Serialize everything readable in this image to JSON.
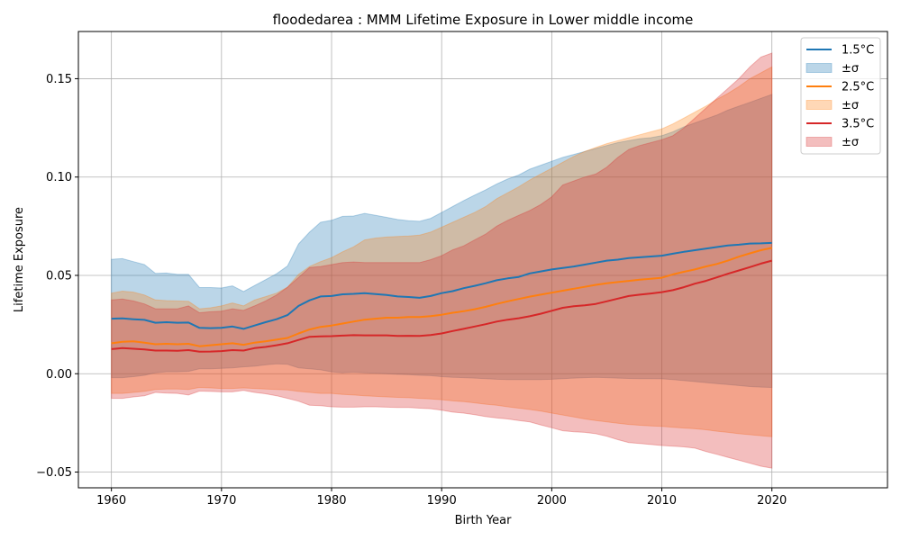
{
  "chart_data": {
    "type": "area",
    "title": "floodedarea : MMM Lifetime Exposure in Lower middle income",
    "xlabel": "Birth Year",
    "ylabel": "Lifetime Exposure",
    "xlim": [
      1957,
      2030.5
    ],
    "ylim": [
      -0.058,
      0.174
    ],
    "xticks": [
      1960,
      1970,
      1980,
      1990,
      2000,
      2010,
      2020
    ],
    "xtick_labels": [
      "1960",
      "1970",
      "1980",
      "1990",
      "2000",
      "2010",
      "2020"
    ],
    "yticks": [
      -0.05,
      0.0,
      0.05,
      0.1,
      0.15
    ],
    "ytick_labels": [
      "−0.05",
      "0.00",
      "0.05",
      "0.10",
      "0.15"
    ],
    "grid": true,
    "legend_position": "top-right",
    "legend": [
      {
        "label": "1.5°C",
        "kind": "line",
        "color": "#1f77b4"
      },
      {
        "label": "±σ",
        "kind": "patch",
        "color": "#1f77b4"
      },
      {
        "label": "2.5°C",
        "kind": "line",
        "color": "#ff7f0e"
      },
      {
        "label": "±σ",
        "kind": "patch",
        "color": "#ff7f0e"
      },
      {
        "label": "3.5°C",
        "kind": "line",
        "color": "#d62728"
      },
      {
        "label": "±σ",
        "kind": "patch",
        "color": "#d62728"
      }
    ],
    "x": [
      1960,
      1961,
      1962,
      1963,
      1964,
      1965,
      1966,
      1967,
      1968,
      1969,
      1970,
      1971,
      1972,
      1973,
      1974,
      1975,
      1976,
      1977,
      1978,
      1979,
      1980,
      1981,
      1982,
      1983,
      1984,
      1985,
      1986,
      1987,
      1988,
      1989,
      1990,
      1991,
      1992,
      1993,
      1994,
      1995,
      1996,
      1997,
      1998,
      1999,
      2000,
      2001,
      2002,
      2003,
      2004,
      2005,
      2006,
      2007,
      2008,
      2009,
      2010,
      2011,
      2012,
      2013,
      2014,
      2015,
      2016,
      2017,
      2018,
      2019,
      2020
    ],
    "series": [
      {
        "name": "1.5°C",
        "color": "#1f77b4",
        "mean": [
          0.028,
          0.0281,
          0.0277,
          0.0274,
          0.0259,
          0.0262,
          0.0259,
          0.026,
          0.0233,
          0.0232,
          0.0233,
          0.024,
          0.0228,
          0.0245,
          0.0262,
          0.0277,
          0.0298,
          0.0345,
          0.0373,
          0.0393,
          0.0395,
          0.0404,
          0.0406,
          0.041,
          0.0405,
          0.04,
          0.0393,
          0.039,
          0.0386,
          0.0395,
          0.041,
          0.042,
          0.0435,
          0.0447,
          0.046,
          0.0475,
          0.0485,
          0.0492,
          0.051,
          0.052,
          0.053,
          0.0538,
          0.0545,
          0.0555,
          0.0565,
          0.0575,
          0.058,
          0.0588,
          0.0592,
          0.0596,
          0.06,
          0.061,
          0.062,
          0.0628,
          0.0636,
          0.0644,
          0.0652,
          0.0656,
          0.0662,
          0.0663,
          0.0665
        ],
        "upper": [
          0.0582,
          0.0585,
          0.057,
          0.0555,
          0.051,
          0.0512,
          0.0505,
          0.0505,
          0.0438,
          0.0438,
          0.0436,
          0.0447,
          0.0418,
          0.0448,
          0.0478,
          0.0508,
          0.0548,
          0.066,
          0.072,
          0.077,
          0.078,
          0.08,
          0.0802,
          0.0815,
          0.0805,
          0.0795,
          0.0784,
          0.0778,
          0.0775,
          0.079,
          0.082,
          0.085,
          0.088,
          0.0908,
          0.0935,
          0.0965,
          0.099,
          0.101,
          0.104,
          0.106,
          0.108,
          0.11,
          0.1115,
          0.113,
          0.1145,
          0.116,
          0.1175,
          0.1185,
          0.1195,
          0.12,
          0.121,
          0.123,
          0.1255,
          0.1275,
          0.1295,
          0.1315,
          0.134,
          0.136,
          0.138,
          0.14,
          0.142
        ],
        "lower": [
          -0.002,
          -0.002,
          -0.0015,
          -0.0008,
          0.0005,
          0.001,
          0.001,
          0.0012,
          0.0025,
          0.0025,
          0.0027,
          0.003,
          0.0035,
          0.0038,
          0.0045,
          0.005,
          0.0048,
          0.003,
          0.0025,
          0.002,
          0.001,
          0.0005,
          0.0008,
          0.0005,
          0.0002,
          0.0,
          -0.0003,
          -0.0005,
          -0.0008,
          -0.001,
          -0.0015,
          -0.0018,
          -0.002,
          -0.0022,
          -0.0025,
          -0.0028,
          -0.003,
          -0.003,
          -0.003,
          -0.003,
          -0.0028,
          -0.0025,
          -0.0022,
          -0.002,
          -0.0018,
          -0.002,
          -0.0022,
          -0.0024,
          -0.0025,
          -0.0025,
          -0.0026,
          -0.003,
          -0.0035,
          -0.004,
          -0.0045,
          -0.005,
          -0.0055,
          -0.006,
          -0.0065,
          -0.0068,
          -0.007
        ]
      },
      {
        "name": "2.5°C",
        "color": "#ff7f0e",
        "mean": [
          0.0155,
          0.0162,
          0.0165,
          0.0158,
          0.015,
          0.0152,
          0.015,
          0.0152,
          0.014,
          0.0145,
          0.015,
          0.0155,
          0.0147,
          0.0158,
          0.0165,
          0.0173,
          0.0182,
          0.0205,
          0.0225,
          0.0238,
          0.0245,
          0.0255,
          0.0265,
          0.0275,
          0.028,
          0.0285,
          0.0285,
          0.0288,
          0.0288,
          0.0293,
          0.03,
          0.031,
          0.0318,
          0.0328,
          0.034,
          0.0355,
          0.0368,
          0.038,
          0.0392,
          0.0402,
          0.0412,
          0.0422,
          0.0432,
          0.0442,
          0.0452,
          0.046,
          0.0466,
          0.0472,
          0.0478,
          0.0483,
          0.0488,
          0.0505,
          0.0518,
          0.053,
          0.0545,
          0.0558,
          0.0575,
          0.0595,
          0.0612,
          0.0628,
          0.064
        ],
        "upper": [
          0.041,
          0.042,
          0.0415,
          0.04,
          0.0375,
          0.0372,
          0.037,
          0.0368,
          0.033,
          0.0335,
          0.0345,
          0.036,
          0.0345,
          0.0375,
          0.0392,
          0.041,
          0.044,
          0.0505,
          0.0545,
          0.057,
          0.059,
          0.062,
          0.0645,
          0.068,
          0.069,
          0.0695,
          0.0698,
          0.07,
          0.0705,
          0.072,
          0.0745,
          0.077,
          0.0795,
          0.082,
          0.085,
          0.089,
          0.092,
          0.095,
          0.0985,
          0.1015,
          0.1045,
          0.1075,
          0.1105,
          0.113,
          0.115,
          0.117,
          0.1185,
          0.12,
          0.1215,
          0.123,
          0.1245,
          0.127,
          0.13,
          0.133,
          0.136,
          0.1395,
          0.1425,
          0.146,
          0.15,
          0.153,
          0.156
        ],
        "lower": [
          -0.01,
          -0.01,
          -0.0095,
          -0.009,
          -0.008,
          -0.0078,
          -0.0078,
          -0.008,
          -0.007,
          -0.0072,
          -0.0075,
          -0.0075,
          -0.0072,
          -0.0075,
          -0.0078,
          -0.008,
          -0.0082,
          -0.009,
          -0.0095,
          -0.01,
          -0.01,
          -0.0105,
          -0.0108,
          -0.0112,
          -0.0115,
          -0.0118,
          -0.012,
          -0.0122,
          -0.0125,
          -0.0128,
          -0.0132,
          -0.0138,
          -0.0142,
          -0.0148,
          -0.0155,
          -0.016,
          -0.0168,
          -0.0175,
          -0.0182,
          -0.019,
          -0.02,
          -0.021,
          -0.022,
          -0.023,
          -0.0238,
          -0.0245,
          -0.0252,
          -0.0258,
          -0.0262,
          -0.0265,
          -0.0268,
          -0.0272,
          -0.0276,
          -0.028,
          -0.0285,
          -0.0292,
          -0.0298,
          -0.0305,
          -0.031,
          -0.0315,
          -0.032
        ]
      },
      {
        "name": "3.5°C",
        "color": "#d62728",
        "mean": [
          0.0125,
          0.013,
          0.0127,
          0.0124,
          0.0118,
          0.0118,
          0.0117,
          0.012,
          0.0112,
          0.0113,
          0.0115,
          0.012,
          0.0118,
          0.013,
          0.0136,
          0.0145,
          0.0155,
          0.0172,
          0.0188,
          0.019,
          0.0191,
          0.0194,
          0.0196,
          0.0195,
          0.0195,
          0.0195,
          0.0192,
          0.0193,
          0.0192,
          0.0197,
          0.0205,
          0.0217,
          0.0228,
          0.024,
          0.0252,
          0.0265,
          0.0275,
          0.0282,
          0.0292,
          0.0305,
          0.032,
          0.0335,
          0.0343,
          0.0348,
          0.0355,
          0.0368,
          0.0382,
          0.0395,
          0.0402,
          0.0408,
          0.0415,
          0.0425,
          0.044,
          0.0458,
          0.0472,
          0.049,
          0.0508,
          0.0525,
          0.0542,
          0.056,
          0.0575
        ],
        "upper": [
          0.0375,
          0.038,
          0.037,
          0.0355,
          0.033,
          0.033,
          0.033,
          0.0345,
          0.031,
          0.0315,
          0.0318,
          0.033,
          0.0322,
          0.0345,
          0.037,
          0.04,
          0.044,
          0.049,
          0.054,
          0.0545,
          0.0555,
          0.0565,
          0.0568,
          0.0565,
          0.0565,
          0.0565,
          0.0565,
          0.0565,
          0.0565,
          0.058,
          0.06,
          0.063,
          0.065,
          0.068,
          0.071,
          0.075,
          0.078,
          0.0805,
          0.083,
          0.086,
          0.09,
          0.096,
          0.098,
          0.1,
          0.1015,
          0.105,
          0.11,
          0.114,
          0.116,
          0.1175,
          0.119,
          0.121,
          0.125,
          0.13,
          0.135,
          0.14,
          0.145,
          0.15,
          0.156,
          0.161,
          0.163
        ],
        "lower": [
          -0.0125,
          -0.0125,
          -0.0118,
          -0.0112,
          -0.0095,
          -0.0098,
          -0.01,
          -0.0108,
          -0.0088,
          -0.009,
          -0.0092,
          -0.0092,
          -0.0085,
          -0.0095,
          -0.0102,
          -0.0112,
          -0.0125,
          -0.014,
          -0.016,
          -0.0162,
          -0.0168,
          -0.017,
          -0.017,
          -0.0168,
          -0.0168,
          -0.017,
          -0.0172,
          -0.0172,
          -0.0175,
          -0.0178,
          -0.0185,
          -0.0195,
          -0.02,
          -0.0208,
          -0.0218,
          -0.0225,
          -0.023,
          -0.0238,
          -0.0245,
          -0.026,
          -0.0275,
          -0.029,
          -0.0295,
          -0.0298,
          -0.0305,
          -0.0318,
          -0.0335,
          -0.035,
          -0.0355,
          -0.036,
          -0.0365,
          -0.0368,
          -0.0372,
          -0.0378,
          -0.0395,
          -0.041,
          -0.0425,
          -0.044,
          -0.0455,
          -0.047,
          -0.048
        ]
      }
    ]
  }
}
